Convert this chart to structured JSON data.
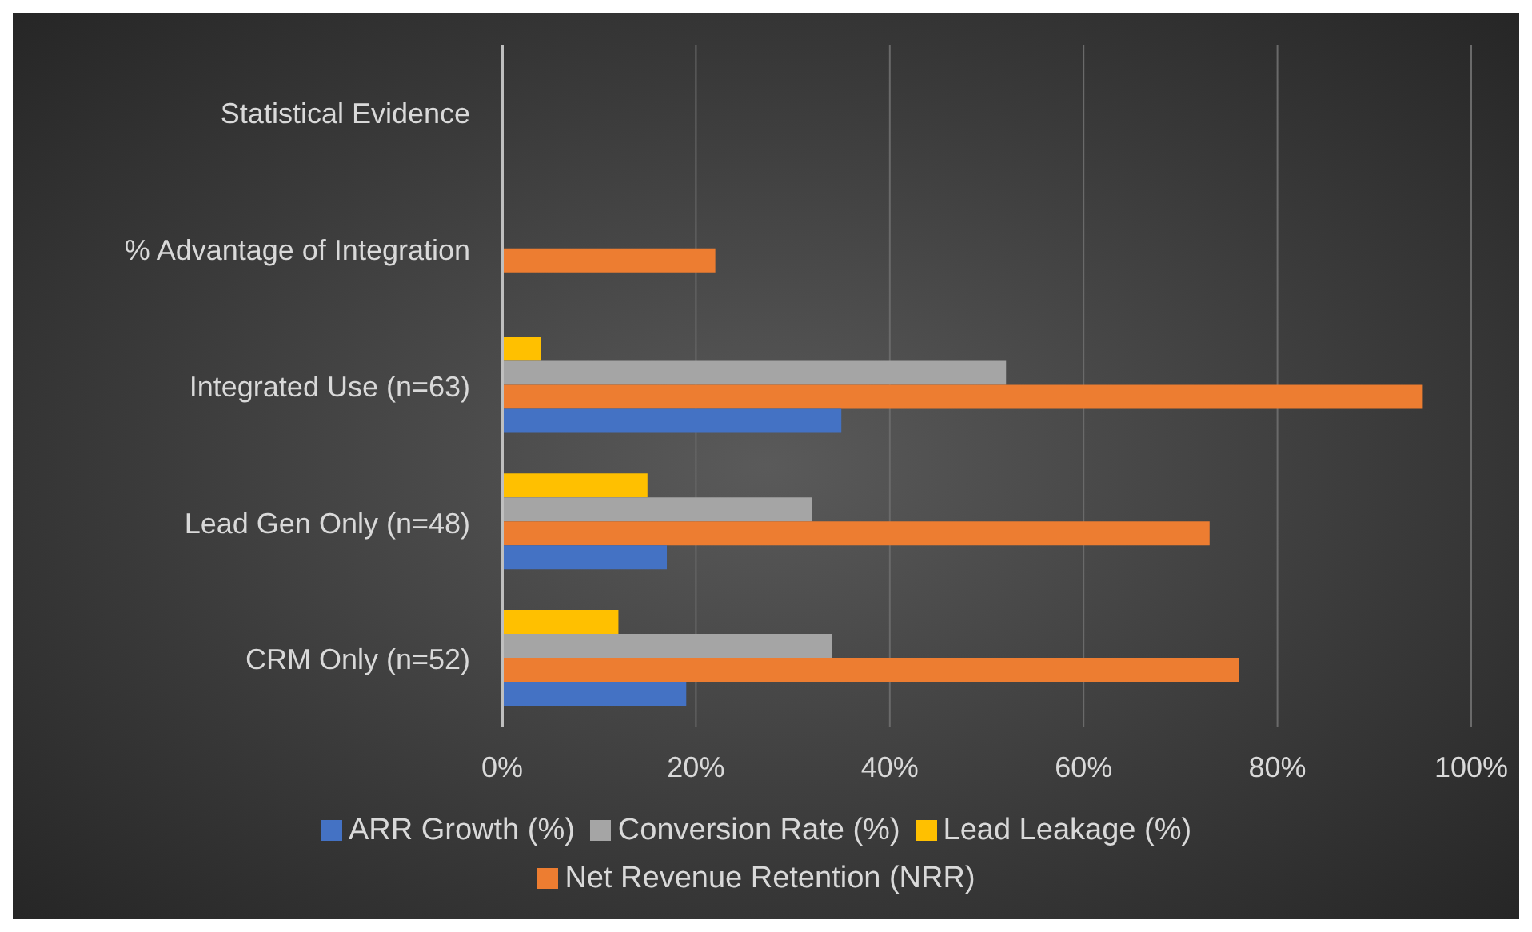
{
  "chart_data": {
    "type": "bar",
    "orientation": "horizontal",
    "categories": [
      "Statistical Evidence",
      "% Advantage of Integration",
      "Integrated Use (n=63)",
      "Lead Gen Only (n=48)",
      "CRM Only (n=52)"
    ],
    "series": [
      {
        "name": "Lead Leakage (%)",
        "color": "#ffc000",
        "values": [
          null,
          null,
          4,
          15,
          12
        ]
      },
      {
        "name": "Conversion Rate (%)",
        "color": "#a5a5a5",
        "values": [
          null,
          null,
          52,
          32,
          34
        ]
      },
      {
        "name": "Net Revenue Retention (NRR)",
        "color": "#ed7d31",
        "values": [
          null,
          22,
          95,
          73,
          76
        ]
      },
      {
        "name": "ARR Growth (%)",
        "color": "#4472c4",
        "values": [
          null,
          null,
          35,
          17,
          19
        ]
      }
    ],
    "xlim": [
      0,
      100
    ],
    "xticks": [
      {
        "value": 0,
        "label": "0%"
      },
      {
        "value": 20,
        "label": "20%"
      },
      {
        "value": 40,
        "label": "40%"
      },
      {
        "value": 60,
        "label": "60%"
      },
      {
        "value": 80,
        "label": "80%"
      },
      {
        "value": 100,
        "label": "100%"
      }
    ],
    "grid": "x",
    "legend": "bottom"
  }
}
